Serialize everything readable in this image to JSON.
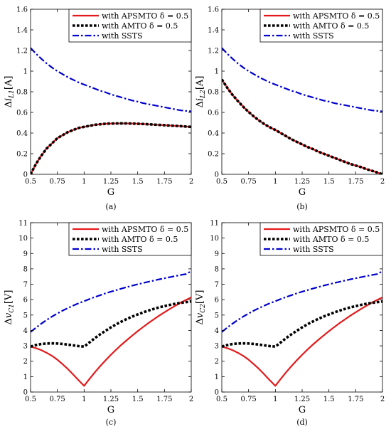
{
  "colors": {
    "apsmto": "#e31a1c",
    "amto": "#000000",
    "ssts": "#0000cc",
    "axis": "#000000",
    "background": "#ffffff"
  },
  "chart_data": [
    {
      "type": "line",
      "panel_label": "(a)",
      "xlabel": "G",
      "ylabel_prefix": "Δ",
      "ylabel_var": "i",
      "ylabel_sub": "L1",
      "ylabel_unit": "[A]",
      "xlim": [
        0.5,
        2
      ],
      "ylim": [
        0,
        1.6
      ],
      "xticks": [
        0.5,
        0.75,
        1,
        1.25,
        1.5,
        1.75,
        2
      ],
      "xtick_labels": [
        "0.5",
        "0.75",
        "1",
        "1.25",
        "1.5",
        "1.75",
        "2"
      ],
      "yticks": [
        0,
        0.2,
        0.4,
        0.6,
        0.8,
        1,
        1.2,
        1.4,
        1.6
      ],
      "ytick_labels": [
        "0",
        "0.2",
        "0.4",
        "0.6",
        "0.8",
        "1",
        "1.2",
        "1.4",
        "1.6"
      ],
      "grid": false,
      "legend": "top-right",
      "x": [
        0.5,
        0.55,
        0.6,
        0.65,
        0.7,
        0.75,
        0.8,
        0.85,
        0.9,
        0.95,
        1.0,
        1.05,
        1.1,
        1.15,
        1.2,
        1.25,
        1.3,
        1.35,
        1.4,
        1.45,
        1.5,
        1.55,
        1.6,
        1.65,
        1.7,
        1.75,
        1.8,
        1.85,
        1.9,
        1.95,
        2.0
      ],
      "series": [
        {
          "name": "with APSMTO δ = 0.5",
          "style": "solid",
          "values": [
            0.0,
            0.1,
            0.18,
            0.25,
            0.3,
            0.35,
            0.38,
            0.41,
            0.43,
            0.45,
            0.46,
            0.47,
            0.48,
            0.485,
            0.49,
            0.492,
            0.493,
            0.494,
            0.493,
            0.492,
            0.49,
            0.488,
            0.485,
            0.482,
            0.479,
            0.476,
            0.473,
            0.47,
            0.467,
            0.463,
            0.46
          ]
        },
        {
          "name": "with AMTO δ = 0.5",
          "style": "dotted",
          "values": [
            0.0,
            0.1,
            0.18,
            0.25,
            0.3,
            0.35,
            0.38,
            0.41,
            0.43,
            0.45,
            0.46,
            0.47,
            0.48,
            0.485,
            0.49,
            0.492,
            0.493,
            0.494,
            0.493,
            0.492,
            0.49,
            0.488,
            0.485,
            0.482,
            0.479,
            0.476,
            0.473,
            0.47,
            0.467,
            0.463,
            0.46
          ]
        },
        {
          "name": "with SSTS",
          "style": "dashdot",
          "values": [
            1.225,
            1.17,
            1.12,
            1.075,
            1.035,
            1.0,
            0.97,
            0.94,
            0.915,
            0.89,
            0.87,
            0.85,
            0.83,
            0.81,
            0.795,
            0.775,
            0.76,
            0.745,
            0.73,
            0.715,
            0.705,
            0.69,
            0.68,
            0.67,
            0.66,
            0.65,
            0.64,
            0.63,
            0.62,
            0.615,
            0.61
          ]
        }
      ]
    },
    {
      "type": "line",
      "panel_label": "(b)",
      "xlabel": "G",
      "ylabel_prefix": "Δ",
      "ylabel_var": "i",
      "ylabel_sub": "L2",
      "ylabel_unit": "[A]",
      "xlim": [
        0.5,
        2
      ],
      "ylim": [
        0,
        1.6
      ],
      "xticks": [
        0.5,
        0.75,
        1,
        1.25,
        1.5,
        1.75,
        2
      ],
      "xtick_labels": [
        "0.5",
        "0.75",
        "1",
        "1.25",
        "1.5",
        "1.75",
        "2"
      ],
      "yticks": [
        0,
        0.2,
        0.4,
        0.6,
        0.8,
        1,
        1.2,
        1.4,
        1.6
      ],
      "ytick_labels": [
        "0",
        "0.2",
        "0.4",
        "0.6",
        "0.8",
        "1",
        "1.2",
        "1.4",
        "1.6"
      ],
      "grid": false,
      "legend": "top-right",
      "x": [
        0.5,
        0.55,
        0.6,
        0.65,
        0.7,
        0.75,
        0.8,
        0.85,
        0.9,
        0.95,
        1.0,
        1.05,
        1.1,
        1.15,
        1.2,
        1.25,
        1.3,
        1.35,
        1.4,
        1.45,
        1.5,
        1.55,
        1.6,
        1.65,
        1.7,
        1.75,
        1.8,
        1.85,
        1.9,
        1.95,
        2.0
      ],
      "series": [
        {
          "name": "with APSMTO δ = 0.5",
          "style": "solid",
          "values": [
            0.92,
            0.84,
            0.77,
            0.71,
            0.655,
            0.605,
            0.56,
            0.52,
            0.485,
            0.455,
            0.43,
            0.4,
            0.37,
            0.34,
            0.315,
            0.29,
            0.265,
            0.245,
            0.22,
            0.2,
            0.18,
            0.16,
            0.14,
            0.12,
            0.1,
            0.085,
            0.07,
            0.05,
            0.035,
            0.018,
            0.0
          ]
        },
        {
          "name": "with AMTO δ = 0.5",
          "style": "dotted",
          "values": [
            0.92,
            0.84,
            0.77,
            0.71,
            0.655,
            0.605,
            0.56,
            0.52,
            0.485,
            0.455,
            0.43,
            0.4,
            0.37,
            0.34,
            0.315,
            0.29,
            0.265,
            0.245,
            0.22,
            0.2,
            0.18,
            0.16,
            0.14,
            0.12,
            0.1,
            0.085,
            0.07,
            0.05,
            0.035,
            0.018,
            0.0
          ]
        },
        {
          "name": "with SSTS",
          "style": "dashdot",
          "values": [
            1.225,
            1.17,
            1.12,
            1.075,
            1.035,
            1.0,
            0.97,
            0.94,
            0.915,
            0.89,
            0.87,
            0.85,
            0.83,
            0.81,
            0.795,
            0.775,
            0.76,
            0.745,
            0.73,
            0.715,
            0.705,
            0.69,
            0.68,
            0.67,
            0.66,
            0.65,
            0.64,
            0.63,
            0.62,
            0.615,
            0.61
          ]
        }
      ]
    },
    {
      "type": "line",
      "panel_label": "(c)",
      "xlabel": "G",
      "ylabel_prefix": "Δ",
      "ylabel_var": "v",
      "ylabel_sub": "C1",
      "ylabel_unit": "[V]",
      "xlim": [
        0.5,
        2
      ],
      "ylim": [
        0,
        11
      ],
      "xticks": [
        0.5,
        0.75,
        1,
        1.25,
        1.5,
        1.75,
        2
      ],
      "xtick_labels": [
        "0.5",
        "0.75",
        "1",
        "1.25",
        "1.5",
        "1.75",
        "2"
      ],
      "yticks": [
        0,
        1,
        2,
        3,
        4,
        5,
        6,
        7,
        8,
        9,
        10,
        11
      ],
      "ytick_labels": [
        "0",
        "1",
        "2",
        "3",
        "4",
        "5",
        "6",
        "7",
        "8",
        "9",
        "10",
        "11"
      ],
      "grid": false,
      "legend": "top-right",
      "x": [
        0.5,
        0.55,
        0.6,
        0.65,
        0.7,
        0.75,
        0.8,
        0.85,
        0.9,
        0.95,
        1.0,
        1.05,
        1.1,
        1.15,
        1.2,
        1.25,
        1.3,
        1.35,
        1.4,
        1.45,
        1.5,
        1.55,
        1.6,
        1.65,
        1.7,
        1.75,
        1.8,
        1.85,
        1.9,
        1.95,
        2.0
      ],
      "series": [
        {
          "name": "with APSMTO δ = 0.5",
          "style": "solid",
          "values": [
            2.95,
            2.85,
            2.72,
            2.55,
            2.35,
            2.1,
            1.8,
            1.48,
            1.12,
            0.75,
            0.4,
            0.85,
            1.28,
            1.68,
            2.06,
            2.42,
            2.76,
            3.08,
            3.38,
            3.67,
            3.95,
            4.22,
            4.48,
            4.72,
            4.96,
            5.18,
            5.4,
            5.6,
            5.8,
            5.98,
            6.15
          ]
        },
        {
          "name": "with AMTO δ = 0.5",
          "style": "dotted",
          "values": [
            2.95,
            3.05,
            3.12,
            3.15,
            3.16,
            3.15,
            3.12,
            3.08,
            3.03,
            2.98,
            2.95,
            3.22,
            3.5,
            3.75,
            3.98,
            4.2,
            4.4,
            4.58,
            4.75,
            4.9,
            5.04,
            5.17,
            5.29,
            5.4,
            5.5,
            5.58,
            5.66,
            5.73,
            5.79,
            5.84,
            5.88
          ]
        },
        {
          "name": "with SSTS",
          "style": "dashdot",
          "values": [
            3.9,
            4.18,
            4.44,
            4.68,
            4.9,
            5.1,
            5.29,
            5.46,
            5.62,
            5.77,
            5.9,
            6.04,
            6.17,
            6.29,
            6.41,
            6.52,
            6.62,
            6.72,
            6.82,
            6.91,
            7.0,
            7.08,
            7.16,
            7.24,
            7.32,
            7.39,
            7.46,
            7.53,
            7.6,
            7.66,
            7.85
          ]
        }
      ]
    },
    {
      "type": "line",
      "panel_label": "(d)",
      "xlabel": "G",
      "ylabel_prefix": "Δ",
      "ylabel_var": "v",
      "ylabel_sub": "C2",
      "ylabel_unit": "[V]",
      "xlim": [
        0.5,
        2
      ],
      "ylim": [
        0,
        11
      ],
      "xticks": [
        0.5,
        0.75,
        1,
        1.25,
        1.5,
        1.75,
        2
      ],
      "xtick_labels": [
        "0.5",
        "0.75",
        "1",
        "1.25",
        "1.5",
        "1.75",
        "2"
      ],
      "yticks": [
        0,
        1,
        2,
        3,
        4,
        5,
        6,
        7,
        8,
        9,
        10,
        11
      ],
      "ytick_labels": [
        "0",
        "1",
        "2",
        "3",
        "4",
        "5",
        "6",
        "7",
        "8",
        "9",
        "10",
        "11"
      ],
      "grid": false,
      "legend": "top-right",
      "x": [
        0.5,
        0.55,
        0.6,
        0.65,
        0.7,
        0.75,
        0.8,
        0.85,
        0.9,
        0.95,
        1.0,
        1.05,
        1.1,
        1.15,
        1.2,
        1.25,
        1.3,
        1.35,
        1.4,
        1.45,
        1.5,
        1.55,
        1.6,
        1.65,
        1.7,
        1.75,
        1.8,
        1.85,
        1.9,
        1.95,
        2.0
      ],
      "series": [
        {
          "name": "with APSMTO δ = 0.5",
          "style": "solid",
          "values": [
            2.95,
            2.85,
            2.72,
            2.55,
            2.35,
            2.1,
            1.8,
            1.48,
            1.12,
            0.75,
            0.4,
            0.85,
            1.28,
            1.68,
            2.06,
            2.42,
            2.76,
            3.08,
            3.38,
            3.67,
            3.95,
            4.22,
            4.48,
            4.72,
            4.96,
            5.18,
            5.4,
            5.6,
            5.8,
            5.98,
            6.15
          ]
        },
        {
          "name": "with AMTO δ = 0.5",
          "style": "dotted",
          "values": [
            2.95,
            3.05,
            3.12,
            3.15,
            3.16,
            3.15,
            3.12,
            3.08,
            3.03,
            2.98,
            2.95,
            3.22,
            3.5,
            3.75,
            3.98,
            4.2,
            4.4,
            4.58,
            4.75,
            4.9,
            5.04,
            5.17,
            5.29,
            5.4,
            5.5,
            5.58,
            5.66,
            5.73,
            5.79,
            5.84,
            5.88
          ]
        },
        {
          "name": "with SSTS",
          "style": "dashdot",
          "values": [
            3.9,
            4.18,
            4.44,
            4.68,
            4.9,
            5.1,
            5.29,
            5.46,
            5.62,
            5.77,
            5.9,
            6.04,
            6.17,
            6.29,
            6.41,
            6.52,
            6.62,
            6.72,
            6.82,
            6.91,
            7.0,
            7.08,
            7.16,
            7.24,
            7.32,
            7.39,
            7.46,
            7.53,
            7.6,
            7.66,
            7.85
          ]
        }
      ]
    }
  ]
}
